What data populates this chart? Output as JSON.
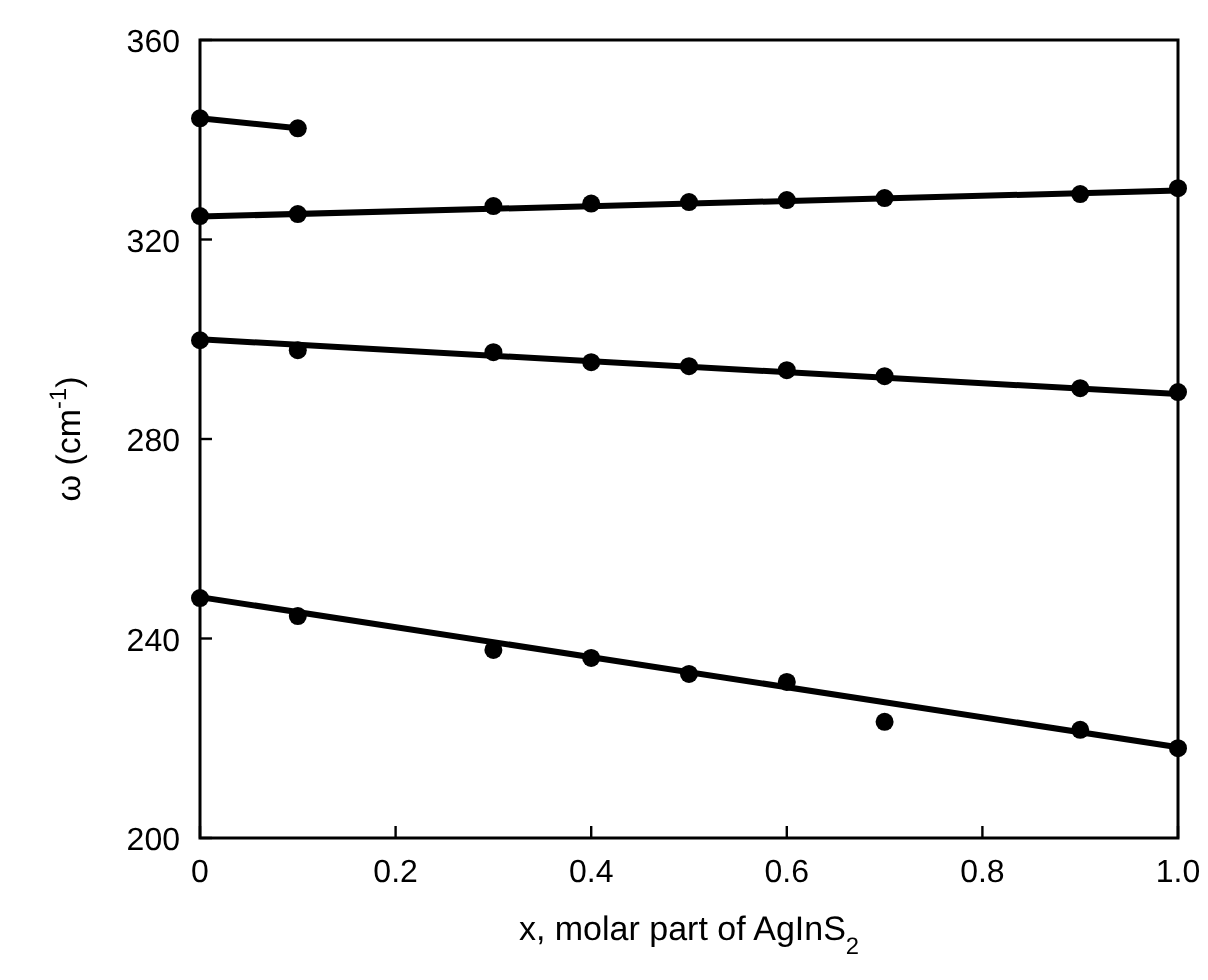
{
  "chart_data": {
    "type": "scatter",
    "xlabel": "x, molar part of AgInS$_{2}$",
    "ylabel": "ω (cm$^{-1}$)",
    "xlim": [
      0,
      1
    ],
    "ylim": [
      200,
      360
    ],
    "xticks": [
      0,
      0.2,
      0.4,
      0.6,
      0.8,
      {
        "value": 1,
        "label": "1.0"
      }
    ],
    "yticks": [
      200,
      240,
      280,
      320,
      360
    ],
    "marker": "circle",
    "grid": false,
    "series": [
      {
        "type": "line",
        "marker": "none",
        "color": "#000000",
        "x": [
          0,
          0.1
        ],
        "values": [
          344.3,
          342.3
        ]
      },
      {
        "color": "#000000",
        "x": [
          0,
          0.1
        ],
        "values": [
          344.3,
          342.3
        ]
      },
      {
        "color": "#000000",
        "x": [
          0,
          0.1,
          0.3,
          0.4,
          0.5,
          0.6,
          0.7,
          0.9,
          1
        ],
        "values": [
          324.7,
          325.1,
          326.7,
          327.2,
          327.5,
          327.9,
          328.3,
          329.1,
          330.3
        ]
      },
      {
        "type": "line",
        "marker": "none",
        "color": "#000000",
        "x": [
          0,
          1
        ],
        "values": [
          324.6,
          329.8
        ]
      },
      {
        "color": "#000000",
        "x": [
          0,
          0.1,
          0.3,
          0.4,
          0.5,
          0.6,
          0.7,
          0.9,
          1
        ],
        "values": [
          299.8,
          297.8,
          297.4,
          295.4,
          294.6,
          293.8,
          292.6,
          290.2,
          289.4
        ]
      },
      {
        "type": "line",
        "marker": "none",
        "color": "#000000",
        "x": [
          0,
          1
        ],
        "values": [
          300,
          289
        ]
      },
      {
        "color": "#000000",
        "x": [
          0,
          0.1,
          0.3,
          0.4,
          0.5,
          0.6,
          0.7,
          0.9,
          1
        ],
        "values": [
          248.1,
          244.5,
          237.7,
          236.1,
          232.9,
          231.3,
          223.3,
          221.7,
          218
        ]
      },
      {
        "type": "line",
        "marker": "none",
        "color": "#000000",
        "x": [
          0,
          1
        ],
        "values": [
          248.3,
          218.2
        ]
      }
    ]
  }
}
